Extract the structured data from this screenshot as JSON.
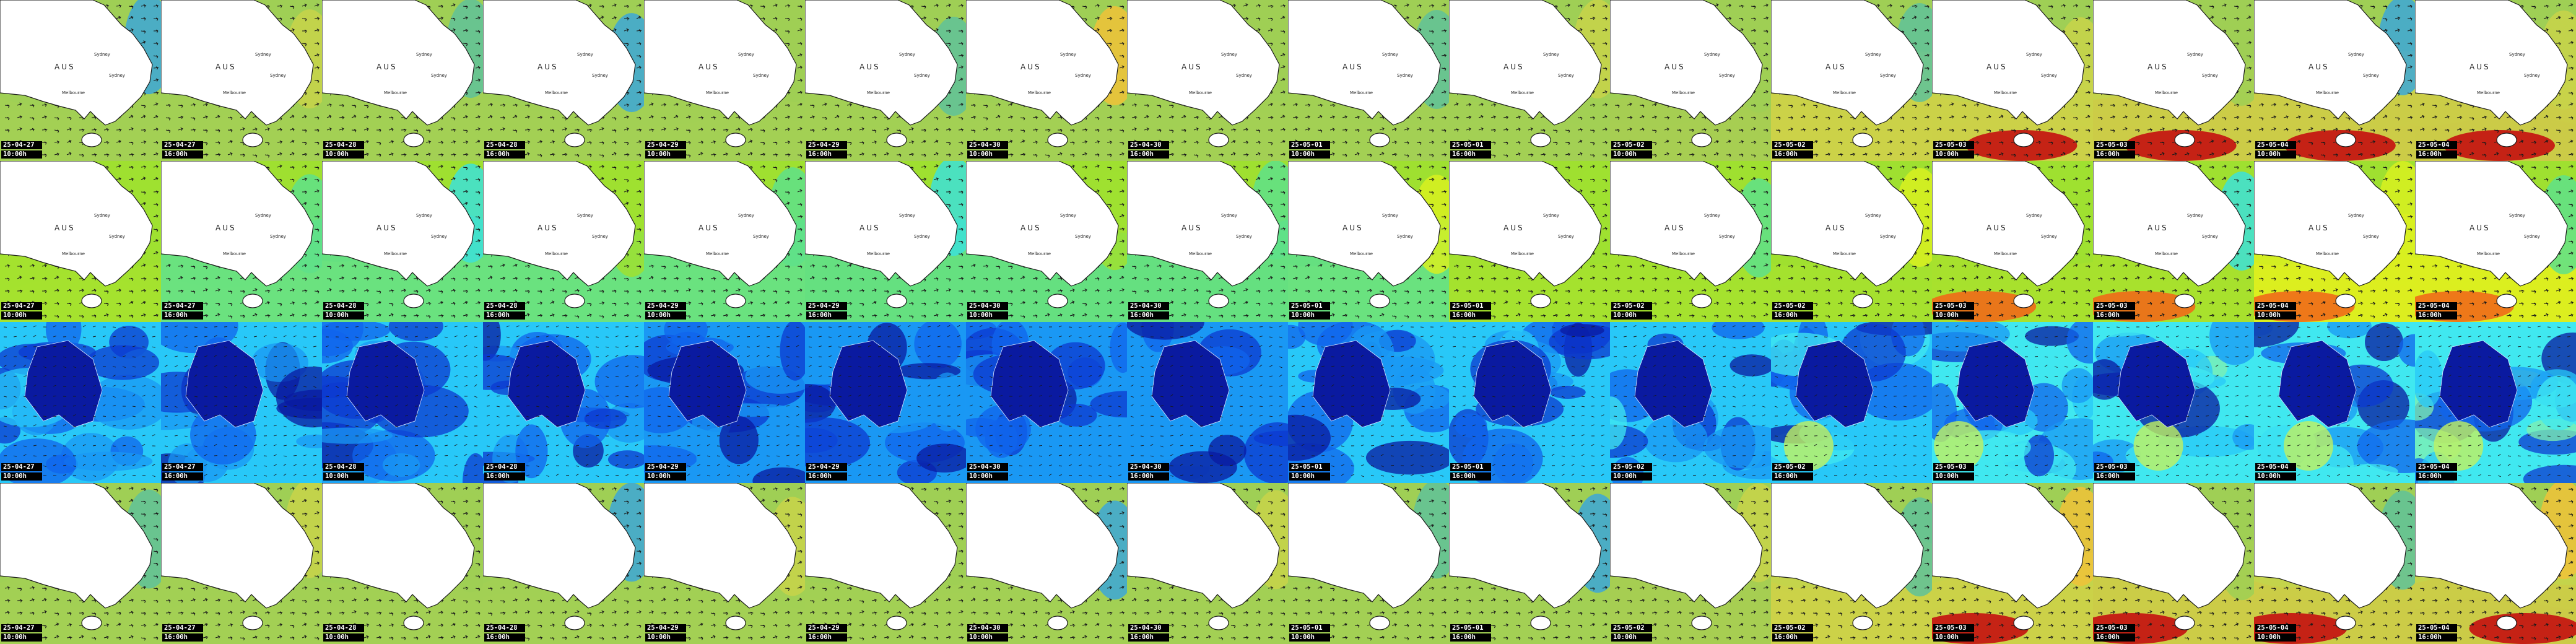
{
  "mosaic": {
    "columns": 16,
    "rows": [
      {
        "key": "row-a",
        "product": "regional",
        "palette": "warm",
        "show_labels": true
      },
      {
        "key": "row-b",
        "product": "regional",
        "palette": "mid",
        "show_labels": true
      },
      {
        "key": "row-c",
        "product": "wide",
        "palette": "cool",
        "show_labels": false
      },
      {
        "key": "row-d",
        "product": "regional",
        "palette": "warm",
        "show_labels": false
      }
    ],
    "frames": [
      {
        "date": "25-04-27",
        "hour": "10:00h",
        "intensity": 0.25
      },
      {
        "date": "25-04-27",
        "hour": "16:00h",
        "intensity": 0.22
      },
      {
        "date": "25-04-28",
        "hour": "10:00h",
        "intensity": 0.2
      },
      {
        "date": "25-04-28",
        "hour": "16:00h",
        "intensity": 0.18
      },
      {
        "date": "25-04-29",
        "hour": "10:00h",
        "intensity": 0.15
      },
      {
        "date": "25-04-29",
        "hour": "16:00h",
        "intensity": 0.14
      },
      {
        "date": "25-04-30",
        "hour": "10:00h",
        "intensity": 0.13
      },
      {
        "date": "25-04-30",
        "hour": "16:00h",
        "intensity": 0.14
      },
      {
        "date": "25-05-01",
        "hour": "10:00h",
        "intensity": 0.2
      },
      {
        "date": "25-05-01",
        "hour": "16:00h",
        "intensity": 0.28
      },
      {
        "date": "25-05-02",
        "hour": "10:00h",
        "intensity": 0.42
      },
      {
        "date": "25-05-02",
        "hour": "16:00h",
        "intensity": 0.55
      },
      {
        "date": "25-05-03",
        "hour": "10:00h",
        "intensity": 0.65
      },
      {
        "date": "25-05-03",
        "hour": "16:00h",
        "intensity": 0.72
      },
      {
        "date": "25-05-04",
        "hour": "10:00h",
        "intensity": 0.85
      },
      {
        "date": "25-05-04",
        "hour": "16:00h",
        "intensity": 0.9
      }
    ],
    "labels": {
      "country": "AUS",
      "city_north": "Sydney",
      "city_south": "Sydney",
      "city_southwest": "Melbourne"
    },
    "colors": {
      "land": "#ffffff",
      "coast": "#1a1a1a",
      "arrow": "#1a1a1a",
      "stamp_bg": "#000000",
      "stamp_text": "#ffffff",
      "palette_warm": [
        "#2c6fd6",
        "#3ca7d8",
        "#5fc29a",
        "#9fcf55",
        "#c8d44a",
        "#f0c238",
        "#f08a2a",
        "#e83a1e",
        "#c41010"
      ],
      "palette_mid": [
        "#28c8f0",
        "#3ce0d8",
        "#5ee08a",
        "#9fe030",
        "#d8f020",
        "#f8e818",
        "#f8b020",
        "#f06a18"
      ],
      "palette_cool": [
        "#0a1aa0",
        "#0c3ad0",
        "#1064ec",
        "#1a98f4",
        "#28c8f8",
        "#40e8f0",
        "#80f0b0",
        "#c0f060"
      ]
    },
    "icons": {
      "wind": "arrow-glyph"
    }
  }
}
